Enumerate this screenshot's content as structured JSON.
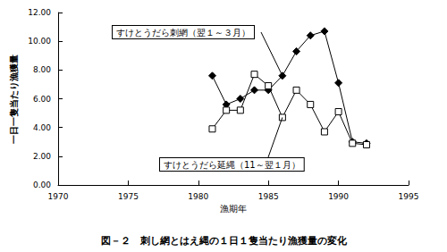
{
  "chart_data": {
    "type": "line",
    "title": "図－２　刺し網とはえ縄の１日１隻当たり漁獲量の変化",
    "x_label": "漁期年",
    "y_label": "一日一隻当たり漁獲量",
    "x": [
      1981,
      1982,
      1983,
      1984,
      1985,
      1986,
      1987,
      1988,
      1989,
      1990,
      1991,
      1992
    ],
    "series": [
      {
        "name": "すけとうだら刺網（翌１～３月）",
        "color": "#000000",
        "marker": "diamond",
        "line_style": "solid",
        "values": [
          7.6,
          5.6,
          6.0,
          6.6,
          6.6,
          7.6,
          9.3,
          10.4,
          10.7,
          7.1,
          3.0,
          2.9
        ]
      },
      {
        "name": "すけとうだら延縄（11～翌１月）",
        "color": "#000000",
        "marker": "square",
        "line_style": "solid",
        "values": [
          3.9,
          5.2,
          5.2,
          7.7,
          6.9,
          4.7,
          6.6,
          5.6,
          3.7,
          5.1,
          2.9,
          2.8
        ]
      }
    ],
    "xlim": [
      1970,
      1995
    ],
    "xticks": [
      1970,
      1975,
      1980,
      1985,
      1990,
      1995
    ],
    "ylim": [
      0,
      12
    ],
    "yticks": [
      {
        "value": 0,
        "label": "0.00"
      },
      {
        "value": 2,
        "label": "2.00"
      },
      {
        "value": 4,
        "label": "4.00"
      },
      {
        "value": 6,
        "label": "6.00"
      },
      {
        "value": 8,
        "label": "8.00"
      },
      {
        "value": 10,
        "label": "10.00"
      },
      {
        "value": 12,
        "label": "12.00"
      }
    ],
    "grid": false
  }
}
